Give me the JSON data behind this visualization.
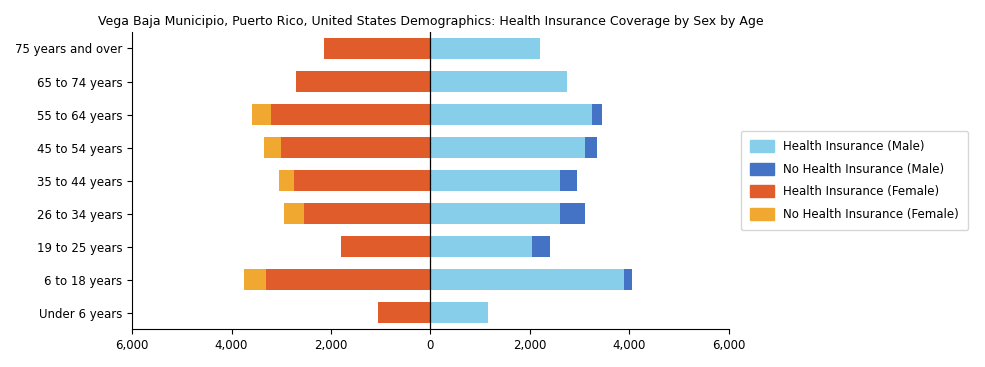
{
  "title": "Vega Baja Municipio, Puerto Rico, United States Demographics: Health Insurance Coverage by Sex by Age",
  "age_groups": [
    "Under 6 years",
    "6 to 18 years",
    "19 to 25 years",
    "26 to 34 years",
    "35 to 44 years",
    "45 to 54 years",
    "55 to 64 years",
    "65 to 74 years",
    "75 years and over"
  ],
  "health_ins_male": [
    1150,
    3900,
    2050,
    2600,
    2600,
    3100,
    3250,
    2750,
    2200
  ],
  "no_health_ins_male": [
    0,
    150,
    350,
    500,
    350,
    250,
    200,
    0,
    0
  ],
  "health_ins_female": [
    1050,
    3300,
    1800,
    2550,
    2750,
    3000,
    3200,
    2700,
    2150
  ],
  "no_health_ins_female": [
    0,
    450,
    0,
    400,
    300,
    350,
    380,
    0,
    0
  ],
  "xlim": 6000,
  "color_health_male": "#87CEEB",
  "color_no_health_male": "#4472C4",
  "color_health_female": "#E05C2A",
  "color_no_health_female": "#F0A830",
  "legend_labels": [
    "Health Insurance (Male)",
    "No Health Insurance (Male)",
    "Health Insurance (Female)",
    "No Health Insurance (Female)"
  ]
}
